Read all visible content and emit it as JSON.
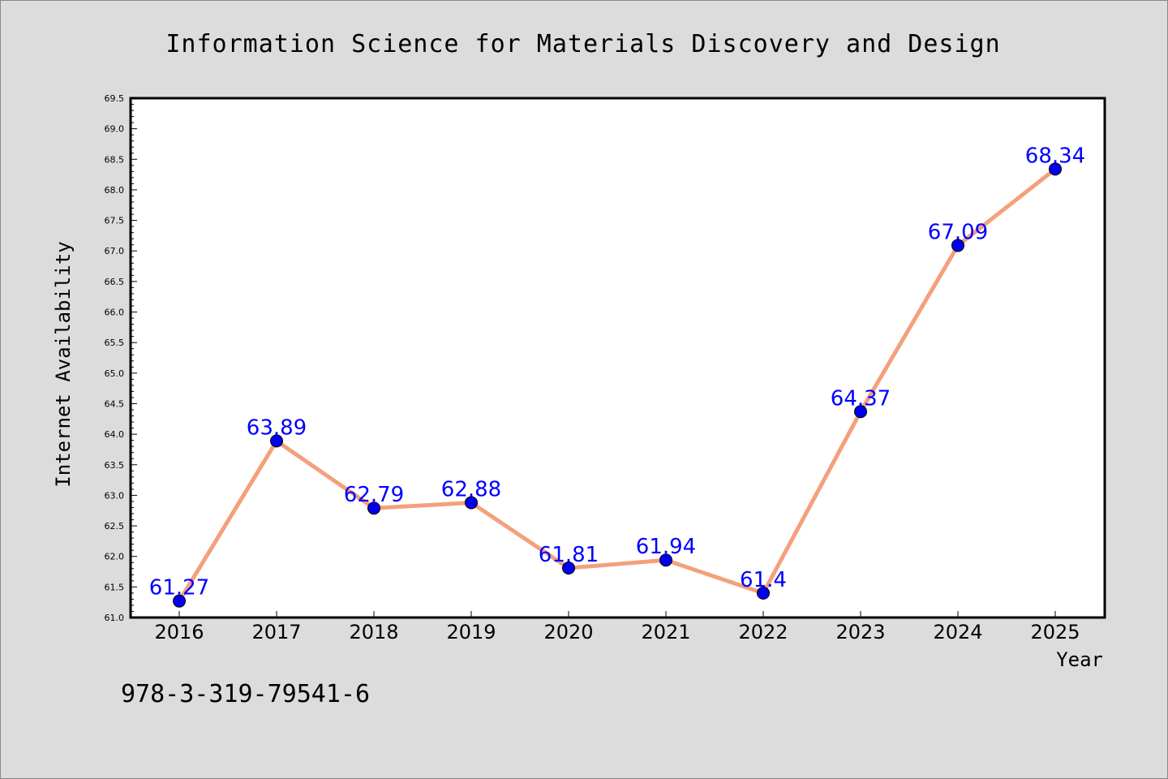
{
  "chart_data": {
    "type": "line",
    "title": "Information Science for Materials Discovery and Design",
    "xlabel": "Year",
    "ylabel": "Internet Availability",
    "categories": [
      "2016",
      "2017",
      "2018",
      "2019",
      "2020",
      "2021",
      "2022",
      "2023",
      "2024",
      "2025"
    ],
    "series": [
      {
        "values": [
          61.27,
          63.89,
          62.79,
          62.88,
          61.81,
          61.94,
          61.4,
          64.37,
          67.09,
          68.34
        ],
        "labels": [
          "61.27",
          "63.89",
          "62.79",
          "62.88",
          "61.81",
          "61.94",
          "61.4",
          "64.37",
          "67.09",
          "68.34"
        ],
        "line_color": "#f4a07c",
        "marker_color": "#0000ee"
      }
    ],
    "ylim": [
      61.0,
      69.5
    ],
    "yticks": [
      "61.0",
      "61.5",
      "62.0",
      "62.5",
      "63.0",
      "63.5",
      "64.0",
      "64.5",
      "65.0",
      "65.5",
      "66.0",
      "66.5",
      "67.0",
      "67.5",
      "68.0",
      "68.5",
      "69.0",
      "69.5"
    ],
    "grid": false,
    "plot_background": "#ffffff",
    "page_background": "#dcdcdc",
    "label_color": "#0000ff"
  },
  "footer": {
    "isbn": "978-3-319-79541-6"
  }
}
